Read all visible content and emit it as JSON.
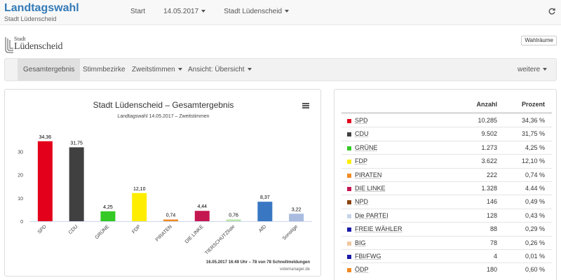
{
  "topbar": {
    "title": "Landtagswahl",
    "subtitle": "Stadt Lüdenscheid",
    "nav_start": "Start",
    "nav_date": "14.05.2017",
    "nav_place": "Stadt Lüdenscheid",
    "refresh_icon": "refresh-icon"
  },
  "logo": {
    "line1": "Stadt",
    "line2": "Lüdenscheid"
  },
  "wahlraeume_label": "Wahlräume",
  "subnav": {
    "gesamt": "Gesamtergebnis",
    "bezirke": "Stimmbezirke",
    "zweitstimmen": "Zweitstimmen",
    "ansicht": "Ansicht: Übersicht",
    "weitere": "weitere"
  },
  "chart_panel": {
    "footnote": "16.05.2017 16:49 Uhr – 78 von 78 Schnellmeldungen",
    "credit": "votemanager.de"
  },
  "chart_data": {
    "type": "bar",
    "title": "Stadt Lüdenscheid – Gesamtergebnis",
    "subtitle": "Landtagswahl 14.05.2017 – Zweitstimmen",
    "categories": [
      "SPD",
      "CDU",
      "GRÜNE",
      "FDP",
      "PIRATEN",
      "DIE LINKE",
      "TIERSCHUTZliste",
      "AfD",
      "Sonstige"
    ],
    "values": [
      34.36,
      31.75,
      4.25,
      12.1,
      0.74,
      4.44,
      0.76,
      8.37,
      3.22
    ],
    "value_labels": [
      "34,36",
      "31,75",
      "4,25",
      "12,10",
      "0,74",
      "4,44",
      "0,76",
      "8,37",
      "3,22"
    ],
    "colors": [
      "#e3001b",
      "#404040",
      "#34c924",
      "#ffed00",
      "#f08a24",
      "#c5174f",
      "#b9e6a6",
      "#3a77c3",
      "#a9bce0"
    ],
    "yticks": [
      "0",
      "10",
      "20",
      "30"
    ],
    "ylim": [
      0,
      40
    ],
    "grid": false
  },
  "table": {
    "col_count": "Anzahl",
    "col_pct": "Prozent",
    "rows": [
      {
        "party": "SPD",
        "count": "10.285",
        "pct": "34,36 %",
        "color": "#e3001b"
      },
      {
        "party": "CDU",
        "count": "9.502",
        "pct": "31,75 %",
        "color": "#404040"
      },
      {
        "party": "GRÜNE",
        "count": "1.273",
        "pct": "4,25 %",
        "color": "#34c924"
      },
      {
        "party": "FDP",
        "count": "3.622",
        "pct": "12,10 %",
        "color": "#ffed00"
      },
      {
        "party": "PIRATEN",
        "count": "222",
        "pct": "0,74 %",
        "color": "#f08a24"
      },
      {
        "party": "DIE LINKE",
        "count": "1.328",
        "pct": "4.44 %",
        "color": "#c5174f"
      },
      {
        "party": "NPD",
        "count": "146",
        "pct": "0,49 %",
        "color": "#8b4513"
      },
      {
        "party": "Die PARTEI",
        "count": "128",
        "pct": "0,43 %",
        "color": "#c8d4ea"
      },
      {
        "party": "FREIE WÄHLER",
        "count": "88",
        "pct": "0,29 %",
        "color": "#1a1aa8"
      },
      {
        "party": "BIG",
        "count": "78",
        "pct": "0,26 %",
        "color": "#f0c8a0"
      },
      {
        "party": "FBI/FWG",
        "count": "4",
        "pct": "0,01 %",
        "color": "#1a1aa8"
      },
      {
        "party": "ÖDP",
        "count": "180",
        "pct": "0,60 %",
        "color": "#f08a24"
      }
    ]
  }
}
